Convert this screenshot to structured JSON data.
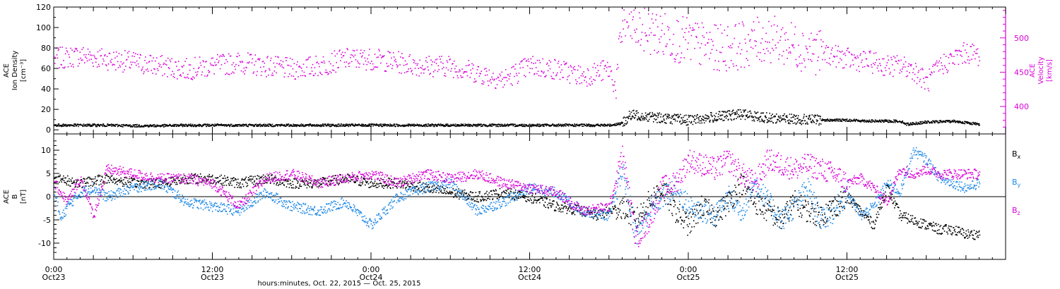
{
  "chart_data": [
    {
      "type": "scatter",
      "panel": "top",
      "title": "",
      "ylabel_left": [
        "ACE",
        "Ion Density",
        "[cm⁻³]"
      ],
      "ylabel_right": [
        "ACE",
        "Velocity",
        "[km/s]"
      ],
      "ylim_left": [
        -4,
        120
      ],
      "yticks_left": [
        0,
        20,
        40,
        60,
        80,
        100,
        120
      ],
      "ylim_right": [
        360,
        545
      ],
      "yticks_right": [
        400,
        450,
        500
      ],
      "grid": false,
      "series": [
        {
          "axis": "left",
          "color": "#000000",
          "x_hours": [
            0,
            2,
            4,
            6,
            8,
            10,
            12,
            14,
            16,
            18,
            20,
            22,
            24,
            26,
            28,
            30,
            32,
            34,
            36,
            38,
            40,
            42,
            43,
            43.5,
            44,
            46,
            48,
            50,
            52,
            54,
            56,
            58,
            60,
            62,
            64,
            64.5,
            66,
            68,
            70
          ],
          "values": [
            5,
            5,
            5,
            4.5,
            4.5,
            5,
            5,
            5,
            5,
            5,
            5,
            5,
            5,
            5,
            5,
            5,
            5,
            5,
            5,
            5,
            5,
            5,
            7,
            14,
            15,
            12,
            10,
            13,
            16,
            12,
            11,
            10,
            10,
            9,
            9,
            6,
            8,
            9,
            6
          ]
        },
        {
          "axis": "right",
          "color": "#d800d8",
          "x_hours": [
            0,
            2,
            4,
            6,
            8,
            10,
            12,
            14,
            16,
            18,
            20,
            22,
            24,
            26,
            28,
            30,
            32,
            34,
            34.5,
            35,
            36,
            38,
            40,
            41,
            42,
            42.5,
            43,
            44,
            46,
            48,
            50,
            52,
            54,
            56,
            58,
            60,
            62,
            63,
            64,
            65,
            66,
            67,
            68,
            69,
            70
          ],
          "values": [
            470,
            475,
            470,
            465,
            460,
            455,
            460,
            465,
            460,
            455,
            460,
            470,
            470,
            465,
            460,
            460,
            450,
            440,
            445,
            450,
            460,
            455,
            445,
            450,
            455,
            425,
            525,
            515,
            505,
            495,
            485,
            490,
            500,
            490,
            480,
            470,
            465,
            460,
            460,
            455,
            435,
            460,
            470,
            480,
            475
          ]
        }
      ]
    },
    {
      "type": "scatter",
      "panel": "bottom",
      "title": "",
      "ylabel_left": [
        "ACE",
        "B",
        "[nT]"
      ],
      "ylim": [
        -13.5,
        13.5
      ],
      "yticks": [
        -10,
        -5,
        0,
        5,
        10
      ],
      "zero_line": true,
      "grid": false,
      "legend_placement": "right",
      "xlabel": "hours:minutes, Oct. 22, 2015 — Oct. 25, 2015",
      "xlim_hours": [
        0,
        72
      ],
      "x_tick_labels": [
        {
          "hours": 0,
          "time": "0:00",
          "date": "Oct23"
        },
        {
          "hours": 12,
          "time": "12:00",
          "date": "Oct23"
        },
        {
          "hours": 24,
          "time": "0:00",
          "date": "Oct24"
        },
        {
          "hours": 36,
          "time": "12:00",
          "date": "Oct24"
        },
        {
          "hours": 48,
          "time": "0:00",
          "date": "Oct25"
        },
        {
          "hours": 60,
          "time": "12:00",
          "date": "Oct25"
        }
      ],
      "series": [
        {
          "name": "Bx",
          "label_main": "B",
          "label_sub": "x",
          "color": "#000000",
          "x_hours": [
            0,
            2,
            4,
            6,
            8,
            10,
            12,
            14,
            16,
            18,
            20,
            22,
            24,
            26,
            28,
            30,
            32,
            34,
            36,
            38,
            40,
            41,
            42,
            43,
            44,
            45,
            46,
            47,
            48,
            49,
            50,
            51,
            52,
            53,
            54,
            55,
            56,
            57,
            58,
            59,
            60,
            61,
            62,
            63,
            64,
            65,
            66,
            67,
            68,
            69,
            70
          ],
          "values": [
            4,
            3,
            4,
            3,
            3,
            4,
            4,
            3,
            4,
            3,
            3,
            4,
            3,
            3,
            2,
            1,
            0,
            1,
            0,
            -2,
            -3,
            -4,
            -3,
            -2,
            -5,
            -1,
            2,
            -3,
            -6,
            -2,
            -4,
            -1,
            3,
            -1,
            -3,
            -5,
            -1,
            -3,
            -4,
            -2,
            0,
            -3,
            -6,
            2,
            -4,
            -5,
            -6,
            -7,
            -7,
            -8,
            -8
          ]
        },
        {
          "name": "By",
          "label_main": "B",
          "label_sub": "y",
          "color": "#1e88e5",
          "x_hours": [
            0,
            0.5,
            1,
            2,
            3,
            4,
            6,
            8,
            10,
            12,
            14,
            16,
            18,
            20,
            22,
            24,
            26,
            28,
            30,
            32,
            34,
            36,
            38,
            40,
            42,
            43,
            44,
            45,
            46,
            47,
            48,
            49,
            50,
            51,
            52,
            53,
            54,
            55,
            56,
            57,
            58,
            59,
            60,
            61,
            62,
            63,
            64,
            65,
            66,
            67,
            68,
            69,
            70
          ],
          "values": [
            2,
            -5,
            -2,
            1,
            2,
            0,
            2,
            3,
            -1,
            -2,
            -3,
            1,
            -2,
            -3,
            -1,
            -6,
            0,
            2,
            3,
            -3,
            -1,
            2,
            1,
            -3,
            -4,
            6,
            -8,
            -3,
            0,
            2,
            -2,
            -3,
            -4,
            0,
            -3,
            3,
            -1,
            -5,
            -2,
            2,
            -5,
            -3,
            1,
            -4,
            -2,
            3,
            1,
            10,
            8,
            4,
            3,
            2,
            3
          ]
        },
        {
          "name": "Bz",
          "label_main": "B",
          "label_sub": "z",
          "color": "#d800d8",
          "x_hours": [
            0,
            1,
            2,
            3,
            4,
            6,
            8,
            10,
            12,
            14,
            16,
            18,
            20,
            22,
            24,
            26,
            28,
            30,
            32,
            34,
            36,
            38,
            40,
            42,
            43,
            44,
            45,
            46,
            47,
            48,
            49,
            50,
            51,
            52,
            53,
            54,
            55,
            56,
            57,
            58,
            59,
            60,
            61,
            62,
            63,
            64,
            65,
            66,
            67,
            68,
            69,
            70
          ],
          "values": [
            3,
            -1,
            4,
            -4,
            6,
            5,
            4,
            4,
            3,
            -2,
            4,
            5,
            3,
            4,
            5,
            3,
            5,
            4,
            5,
            3,
            2,
            1,
            -3,
            -2,
            9,
            -9,
            -5,
            2,
            3,
            8,
            7,
            6,
            8,
            5,
            3,
            8,
            7,
            6,
            7,
            6,
            5,
            3,
            4,
            2,
            -1,
            6,
            5,
            6,
            5,
            5,
            5,
            5
          ]
        }
      ]
    }
  ]
}
